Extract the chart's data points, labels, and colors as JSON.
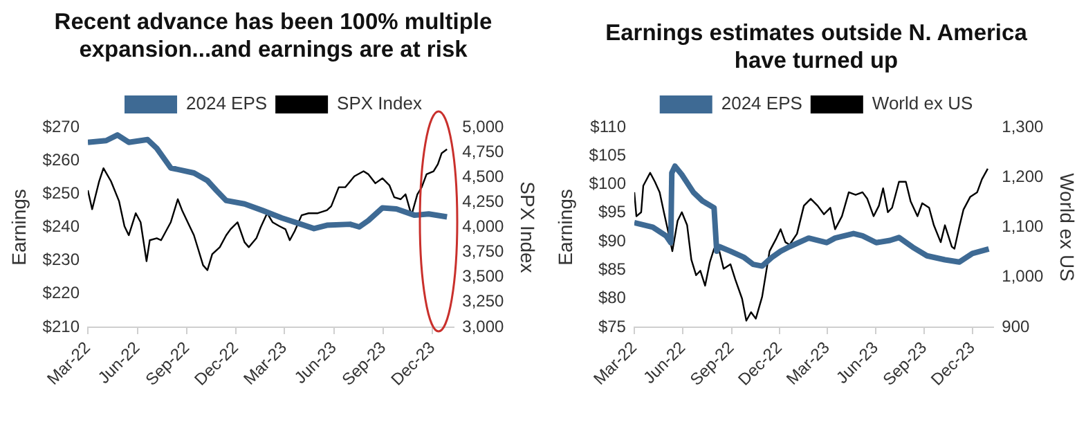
{
  "chart_data": [
    {
      "type": "line",
      "title": "Recent advance has been 100% multiple expansion...and earnings are at risk",
      "ylabel": "Earnings",
      "y2label": "SPX Index",
      "legend": "top",
      "xlim": [
        "2022-03-01",
        "2024-01-10"
      ],
      "xticks": [
        {
          "value": "2022-03-01",
          "label": "Mar-22"
        },
        {
          "value": "2022-06-01",
          "label": "Jun-22"
        },
        {
          "value": "2022-09-01",
          "label": "Sep-22"
        },
        {
          "value": "2022-12-01",
          "label": "Dec-22"
        },
        {
          "value": "2023-03-01",
          "label": "Mar-23"
        },
        {
          "value": "2023-06-01",
          "label": "Jun-23"
        },
        {
          "value": "2023-09-01",
          "label": "Sep-23"
        },
        {
          "value": "2023-12-01",
          "label": "Dec-23"
        }
      ],
      "ylim": [
        210,
        270
      ],
      "yticks": [
        {
          "value": 210,
          "label": "$210"
        },
        {
          "value": 220,
          "label": "$220"
        },
        {
          "value": 230,
          "label": "$230"
        },
        {
          "value": 240,
          "label": "$240"
        },
        {
          "value": 250,
          "label": "$250"
        },
        {
          "value": 260,
          "label": "$260"
        },
        {
          "value": 270,
          "label": "$270"
        }
      ],
      "y2lim": [
        3000,
        5000
      ],
      "y2ticks": [
        {
          "value": 3000,
          "label": "3,000"
        },
        {
          "value": 3250,
          "label": "3,250"
        },
        {
          "value": 3500,
          "label": "3,500"
        },
        {
          "value": 3750,
          "label": "3,750"
        },
        {
          "value": 4000,
          "label": "4,000"
        },
        {
          "value": 4250,
          "label": "4,250"
        },
        {
          "value": 4500,
          "label": "4,500"
        },
        {
          "value": 4750,
          "label": "4,750"
        },
        {
          "value": 5000,
          "label": "5,000"
        }
      ],
      "series": [
        {
          "name": "2024 EPS",
          "color": "#3e6a94",
          "x": [
            "2022-03-01",
            "2022-04-04",
            "2022-04-25",
            "2022-05-16",
            "2022-06-20",
            "2022-07-07",
            "2022-08-02",
            "2022-09-14",
            "2022-10-09",
            "2022-10-26",
            "2022-11-13",
            "2022-12-17",
            "2023-01-20",
            "2023-02-24",
            "2023-03-30",
            "2023-04-25",
            "2023-05-19",
            "2023-07-01",
            "2023-07-18",
            "2023-08-04",
            "2023-08-30",
            "2023-09-25",
            "2023-10-29",
            "2023-11-24",
            "2023-12-28"
          ],
          "values": [
            265.5,
            266,
            267.7,
            265.5,
            266.3,
            263.7,
            257.8,
            256.3,
            254,
            251,
            248,
            247,
            245,
            242.8,
            241,
            239.6,
            240.6,
            240.9,
            240.1,
            242,
            245.8,
            245.5,
            243.6,
            244,
            243.1
          ]
        },
        {
          "name": "SPX Index",
          "color": "#000000",
          "axis": "y2",
          "x": [
            "2022-03-01",
            "2022-03-09",
            "2022-03-22",
            "2022-03-30",
            "2022-04-13",
            "2022-04-28",
            "2022-05-08",
            "2022-05-16",
            "2022-05-29",
            "2022-06-07",
            "2022-06-18",
            "2022-06-24",
            "2022-07-07",
            "2022-07-15",
            "2022-08-02",
            "2022-08-15",
            "2022-08-23",
            "2022-09-06",
            "2022-09-14",
            "2022-09-22",
            "2022-10-01",
            "2022-10-09",
            "2022-10-18",
            "2022-11-01",
            "2022-11-13",
            "2022-11-21",
            "2022-12-04",
            "2022-12-17",
            "2022-12-25",
            "2023-01-08",
            "2023-01-16",
            "2023-01-28",
            "2023-02-07",
            "2023-02-20",
            "2023-03-03",
            "2023-03-11",
            "2023-03-20",
            "2023-04-02",
            "2023-04-15",
            "2023-05-02",
            "2023-05-19",
            "2023-05-27",
            "2023-06-10",
            "2023-06-22",
            "2023-07-09",
            "2023-07-26",
            "2023-08-04",
            "2023-08-17",
            "2023-08-30",
            "2023-09-12",
            "2023-09-21",
            "2023-10-03",
            "2023-10-12",
            "2023-10-23",
            "2023-11-03",
            "2023-11-11",
            "2023-11-20",
            "2023-12-03",
            "2023-12-11",
            "2023-12-18",
            "2023-12-28"
          ],
          "values": [
            4370,
            4180,
            4460,
            4590,
            4460,
            4260,
            4010,
            3920,
            4140,
            4050,
            3660,
            3870,
            3890,
            3870,
            4050,
            4280,
            4170,
            4010,
            3920,
            3780,
            3620,
            3570,
            3730,
            3800,
            3920,
            3980,
            4050,
            3850,
            3800,
            3890,
            4000,
            4140,
            4050,
            4010,
            3980,
            3870,
            3960,
            4120,
            4140,
            4140,
            4170,
            4210,
            4400,
            4400,
            4510,
            4560,
            4530,
            4440,
            4490,
            4420,
            4300,
            4280,
            4330,
            4120,
            4330,
            4400,
            4530,
            4560,
            4630,
            4740,
            4780
          ]
        }
      ]
    },
    {
      "type": "line",
      "title": "Earnings estimates outside N. America have turned up",
      "ylabel": "Earnings",
      "y2label": "World ex US",
      "legend": "top",
      "xlim": [
        "2022-03-01",
        "2024-01-10"
      ],
      "xticks": [
        {
          "value": "2022-03-01",
          "label": "Mar-22"
        },
        {
          "value": "2022-06-01",
          "label": "Jun-22"
        },
        {
          "value": "2022-09-01",
          "label": "Sep-22"
        },
        {
          "value": "2022-12-01",
          "label": "Dec-22"
        },
        {
          "value": "2023-03-01",
          "label": "Mar-23"
        },
        {
          "value": "2023-06-01",
          "label": "Jun-23"
        },
        {
          "value": "2023-09-01",
          "label": "Sep-23"
        },
        {
          "value": "2023-12-01",
          "label": "Dec-23"
        }
      ],
      "ylim": [
        75,
        110
      ],
      "yticks": [
        {
          "value": 75,
          "label": "$75"
        },
        {
          "value": 80,
          "label": "$80"
        },
        {
          "value": 85,
          "label": "$85"
        },
        {
          "value": 90,
          "label": "$90"
        },
        {
          "value": 95,
          "label": "$95"
        },
        {
          "value": 100,
          "label": "$100"
        },
        {
          "value": 105,
          "label": "$105"
        },
        {
          "value": 110,
          "label": "$110"
        }
      ],
      "y2lim": [
        900,
        1300
      ],
      "y2ticks": [
        {
          "value": 900,
          "label": "900"
        },
        {
          "value": 1000,
          "label": "1,000"
        },
        {
          "value": 1100,
          "label": "1,100"
        },
        {
          "value": 1200,
          "label": "1,200"
        },
        {
          "value": 1300,
          "label": "1,300"
        }
      ],
      "series": [
        {
          "name": "2024 EPS",
          "color": "#3e6a94",
          "x": [
            "2022-03-01",
            "2022-04-05",
            "2022-04-30",
            "2022-05-09",
            "2022-05-11",
            "2022-05-17",
            "2022-05-30",
            "2022-06-21",
            "2022-07-08",
            "2022-07-30",
            "2022-08-04",
            "2022-08-09",
            "2022-08-30",
            "2022-09-25",
            "2022-10-12",
            "2022-10-29",
            "2022-11-16",
            "2022-12-03",
            "2022-12-20",
            "2023-01-25",
            "2023-02-28",
            "2023-03-16",
            "2023-04-20",
            "2023-05-07",
            "2023-06-02",
            "2023-06-28",
            "2023-07-15",
            "2023-08-10",
            "2023-09-06",
            "2023-10-10",
            "2023-11-06",
            "2023-12-01",
            "2024-01-01"
          ],
          "values": [
            93.3,
            92.5,
            91,
            89.8,
            102,
            103.2,
            101.7,
            98.6,
            97.1,
            95.9,
            88.3,
            89.1,
            88.3,
            87.2,
            86,
            85.7,
            87.2,
            88.3,
            89.1,
            90.6,
            89.8,
            90.6,
            91.4,
            91,
            89.8,
            90.2,
            90.7,
            89,
            87.5,
            86.8,
            86.4,
            87.9,
            88.7
          ]
        },
        {
          "name": "World ex US",
          "color": "#000000",
          "axis": "y2",
          "x": [
            "2022-03-01",
            "2022-03-05",
            "2022-03-14",
            "2022-03-18",
            "2022-03-31",
            "2022-04-09",
            "2022-04-18",
            "2022-04-26",
            "2022-05-05",
            "2022-05-12",
            "2022-05-22",
            "2022-05-30",
            "2022-06-09",
            "2022-06-17",
            "2022-06-26",
            "2022-07-04",
            "2022-07-13",
            "2022-07-22",
            "2022-07-30",
            "2022-08-09",
            "2022-08-17",
            "2022-08-30",
            "2022-09-08",
            "2022-09-21",
            "2022-09-29",
            "2022-10-08",
            "2022-10-17",
            "2022-10-29",
            "2022-11-12",
            "2022-11-25",
            "2022-12-03",
            "2022-12-12",
            "2022-12-20",
            "2023-01-03",
            "2023-01-16",
            "2023-01-29",
            "2023-02-11",
            "2023-02-23",
            "2023-03-07",
            "2023-03-16",
            "2023-03-29",
            "2023-04-11",
            "2023-04-24",
            "2023-05-07",
            "2023-05-16",
            "2023-05-28",
            "2023-06-07",
            "2023-06-15",
            "2023-06-24",
            "2023-07-02",
            "2023-07-15",
            "2023-07-28",
            "2023-08-06",
            "2023-08-19",
            "2023-08-28",
            "2023-09-10",
            "2023-09-19",
            "2023-10-02",
            "2023-10-10",
            "2023-10-23",
            "2023-10-28",
            "2023-11-06",
            "2023-11-14",
            "2023-11-27",
            "2023-12-10",
            "2023-12-19",
            "2023-12-30"
          ],
          "values": [
            1170,
            1122,
            1130,
            1183,
            1209,
            1191,
            1170,
            1130,
            1087,
            1052,
            1113,
            1130,
            1104,
            1035,
            1004,
            1013,
            983,
            1030,
            1057,
            1052,
            1017,
            1026,
            996,
            957,
            913,
            930,
            917,
            961,
            1052,
            1078,
            1096,
            1070,
            1065,
            1087,
            1143,
            1157,
            1143,
            1126,
            1139,
            1096,
            1122,
            1170,
            1165,
            1170,
            1157,
            1122,
            1143,
            1178,
            1130,
            1139,
            1191,
            1191,
            1152,
            1122,
            1148,
            1139,
            1104,
            1070,
            1104,
            1061,
            1057,
            1100,
            1135,
            1161,
            1170,
            1196,
            1217
          ]
        }
      ]
    }
  ]
}
